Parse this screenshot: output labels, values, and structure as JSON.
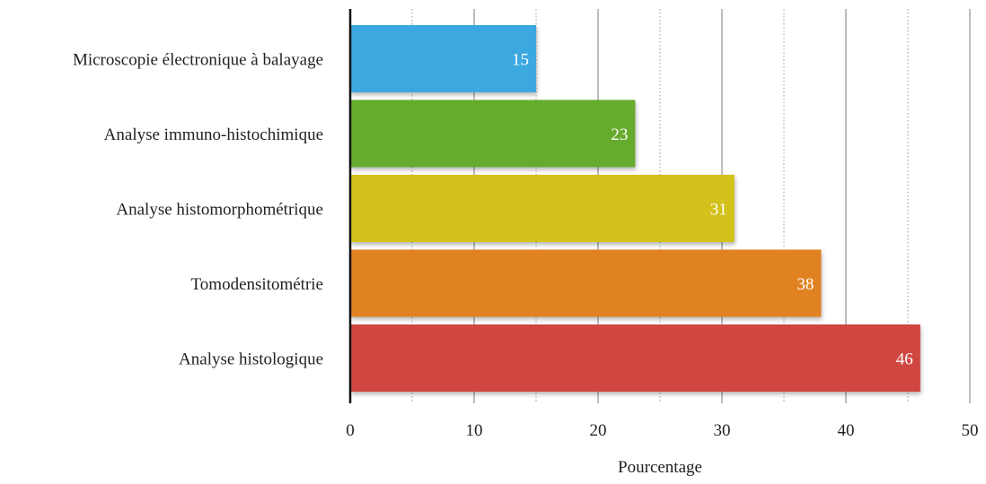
{
  "chart_data": {
    "type": "bar",
    "orientation": "horizontal",
    "categories": [
      "Microscopie électronique à balayage",
      "Analyse immuno-histochimique",
      "Analyse histomorphométrique",
      "Tomodensitométrie",
      "Analyse histologique"
    ],
    "values": [
      15,
      23,
      31,
      38,
      46
    ],
    "value_labels": [
      "15",
      "23",
      "31",
      "38",
      "46"
    ],
    "bar_colors": [
      "#3aa9e0",
      "#66ab2e",
      "#d3c11c",
      "#e08222",
      "#cf4740"
    ],
    "title": "",
    "xlabel": "Pourcentage",
    "ylabel": "",
    "xlim": [
      0,
      50
    ],
    "x_ticks": [
      0,
      10,
      20,
      30,
      40,
      50
    ],
    "x_tick_labels": [
      "0",
      "10",
      "20",
      "30",
      "40",
      "50"
    ],
    "minor_gridlines": true,
    "grid": true,
    "legend": "none"
  }
}
